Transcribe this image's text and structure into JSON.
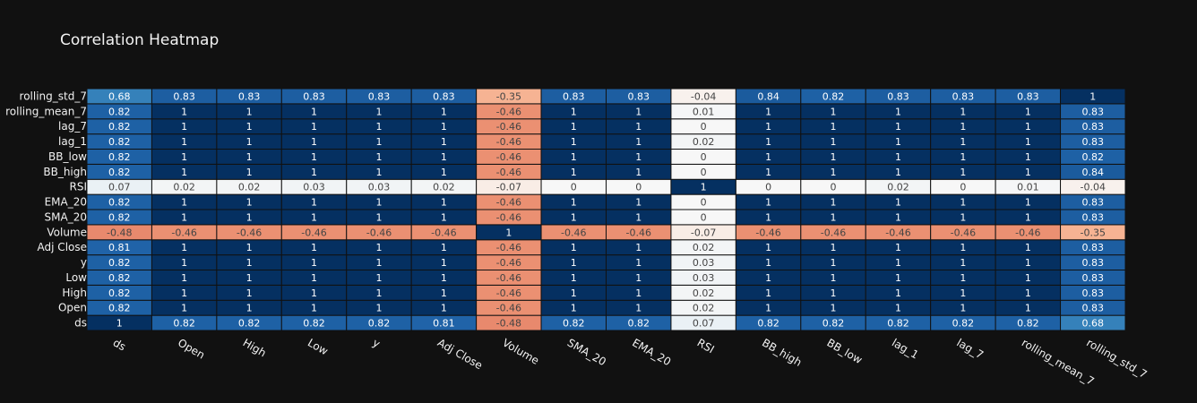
{
  "chart_data": {
    "type": "heatmap",
    "title": "Correlation Heatmap",
    "xlabel": "",
    "ylabel": "",
    "x": [
      "ds",
      "Open",
      "High",
      "Low",
      "y",
      "Adj Close",
      "Volume",
      "SMA_20",
      "EMA_20",
      "RSI",
      "BB_high",
      "BB_low",
      "lag_1",
      "lag_7",
      "rolling_mean_7",
      "rolling_std_7"
    ],
    "y": [
      "ds",
      "Open",
      "High",
      "Low",
      "y",
      "Adj Close",
      "Volume",
      "SMA_20",
      "EMA_20",
      "RSI",
      "BB_high",
      "BB_low",
      "lag_1",
      "lag_7",
      "rolling_mean_7",
      "rolling_std_7"
    ],
    "z": [
      [
        1,
        0.82,
        0.82,
        0.82,
        0.82,
        0.81,
        -0.48,
        0.82,
        0.82,
        0.07,
        0.82,
        0.82,
        0.82,
        0.82,
        0.82,
        0.68
      ],
      [
        0.82,
        1,
        1,
        1,
        1,
        1,
        -0.46,
        1,
        1,
        0.02,
        1,
        1,
        1,
        1,
        1,
        0.83
      ],
      [
        0.82,
        1,
        1,
        1,
        1,
        1,
        -0.46,
        1,
        1,
        0.02,
        1,
        1,
        1,
        1,
        1,
        0.83
      ],
      [
        0.82,
        1,
        1,
        1,
        1,
        1,
        -0.46,
        1,
        1,
        0.03,
        1,
        1,
        1,
        1,
        1,
        0.83
      ],
      [
        0.82,
        1,
        1,
        1,
        1,
        1,
        -0.46,
        1,
        1,
        0.03,
        1,
        1,
        1,
        1,
        1,
        0.83
      ],
      [
        0.81,
        1,
        1,
        1,
        1,
        1,
        -0.46,
        1,
        1,
        0.02,
        1,
        1,
        1,
        1,
        1,
        0.83
      ],
      [
        -0.48,
        -0.46,
        -0.46,
        -0.46,
        -0.46,
        -0.46,
        1,
        -0.46,
        -0.46,
        -0.07,
        -0.46,
        -0.46,
        -0.46,
        -0.46,
        -0.46,
        -0.35
      ],
      [
        0.82,
        1,
        1,
        1,
        1,
        1,
        -0.46,
        1,
        1,
        0,
        1,
        1,
        1,
        1,
        1,
        0.83
      ],
      [
        0.82,
        1,
        1,
        1,
        1,
        1,
        -0.46,
        1,
        1,
        0,
        1,
        1,
        1,
        1,
        1,
        0.83
      ],
      [
        0.07,
        0.02,
        0.02,
        0.03,
        0.03,
        0.02,
        -0.07,
        0,
        0,
        1,
        0,
        0,
        0.02,
        0,
        0.01,
        -0.04
      ],
      [
        0.82,
        1,
        1,
        1,
        1,
        1,
        -0.46,
        1,
        1,
        0,
        1,
        1,
        1,
        1,
        1,
        0.84
      ],
      [
        0.82,
        1,
        1,
        1,
        1,
        1,
        -0.46,
        1,
        1,
        0,
        1,
        1,
        1,
        1,
        1,
        0.82
      ],
      [
        0.82,
        1,
        1,
        1,
        1,
        1,
        -0.46,
        1,
        1,
        0.02,
        1,
        1,
        1,
        1,
        1,
        0.83
      ],
      [
        0.82,
        1,
        1,
        1,
        1,
        1,
        -0.46,
        1,
        1,
        0,
        1,
        1,
        1,
        1,
        1,
        0.83
      ],
      [
        0.82,
        1,
        1,
        1,
        1,
        1,
        -0.46,
        1,
        1,
        0.01,
        1,
        1,
        1,
        1,
        1,
        0.83
      ],
      [
        0.68,
        0.83,
        0.83,
        0.83,
        0.83,
        0.83,
        -0.35,
        0.83,
        0.83,
        -0.04,
        0.84,
        0.82,
        0.83,
        0.83,
        0.83,
        1
      ]
    ],
    "zlim": [
      -1,
      1
    ],
    "colorscale": "RdBu",
    "show_scale": false,
    "grid": false,
    "background": "#111111",
    "cell_border": "#111111"
  }
}
